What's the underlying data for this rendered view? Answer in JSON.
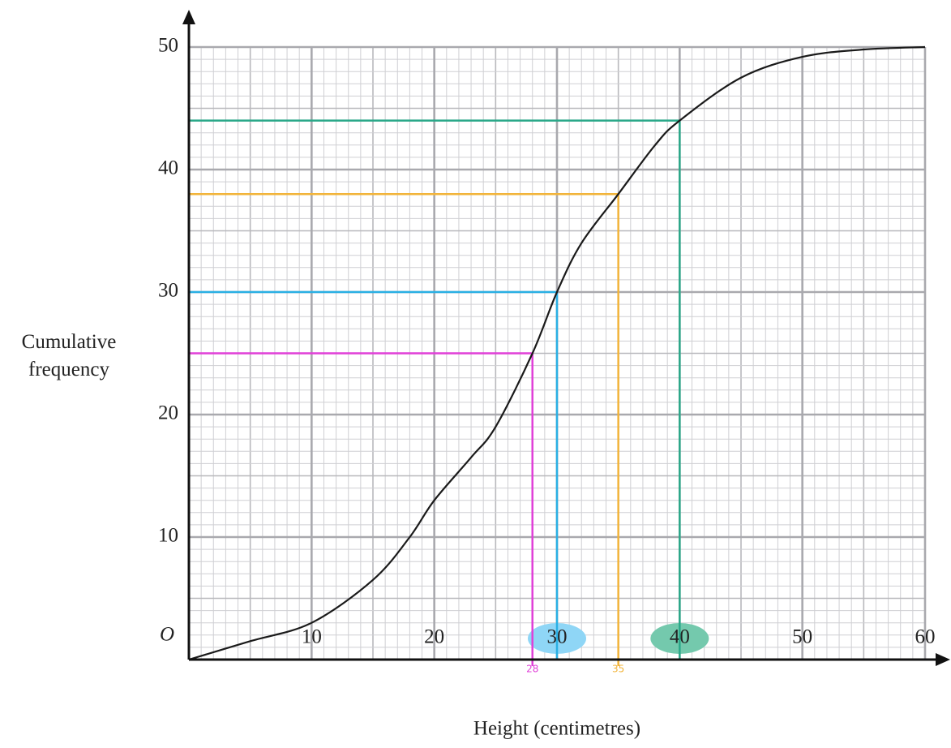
{
  "chart_data": {
    "type": "line",
    "x_label": "Height (centimetres)",
    "y_label": "Cumulative frequency",
    "origin_label": "O",
    "x": [
      0,
      5,
      10,
      15,
      18,
      20,
      23,
      25,
      28,
      30,
      32,
      35,
      38,
      40,
      45,
      50,
      55,
      60
    ],
    "series": [
      {
        "color": "#1a1a1a",
        "values": [
          0,
          1.5,
          3,
          6.5,
          10,
          13,
          16.5,
          19,
          25,
          30,
          34,
          38,
          42,
          44,
          47.5,
          49.2,
          49.8,
          50
        ]
      }
    ],
    "xlim": [
      0,
      60
    ],
    "ylim": [
      0,
      50
    ],
    "xticks": [
      10,
      20,
      30,
      40,
      50,
      60
    ],
    "yticks": [
      10,
      20,
      30,
      40,
      50
    ],
    "grid": true,
    "guides": [
      {
        "x": 28,
        "y": 25,
        "color": "#e040d8",
        "annotate": true
      },
      {
        "x": 30,
        "y": 30,
        "color": "#2ab0e4",
        "annotate": false
      },
      {
        "x": 35,
        "y": 38,
        "color": "#f2b43a",
        "annotate": true
      },
      {
        "x": 40,
        "y": 44,
        "color": "#2aa889",
        "annotate": false
      }
    ],
    "x_highlights": [
      {
        "value": 30,
        "color": "#8fd6f6"
      },
      {
        "value": 40,
        "color": "#74c9ad"
      }
    ]
  }
}
